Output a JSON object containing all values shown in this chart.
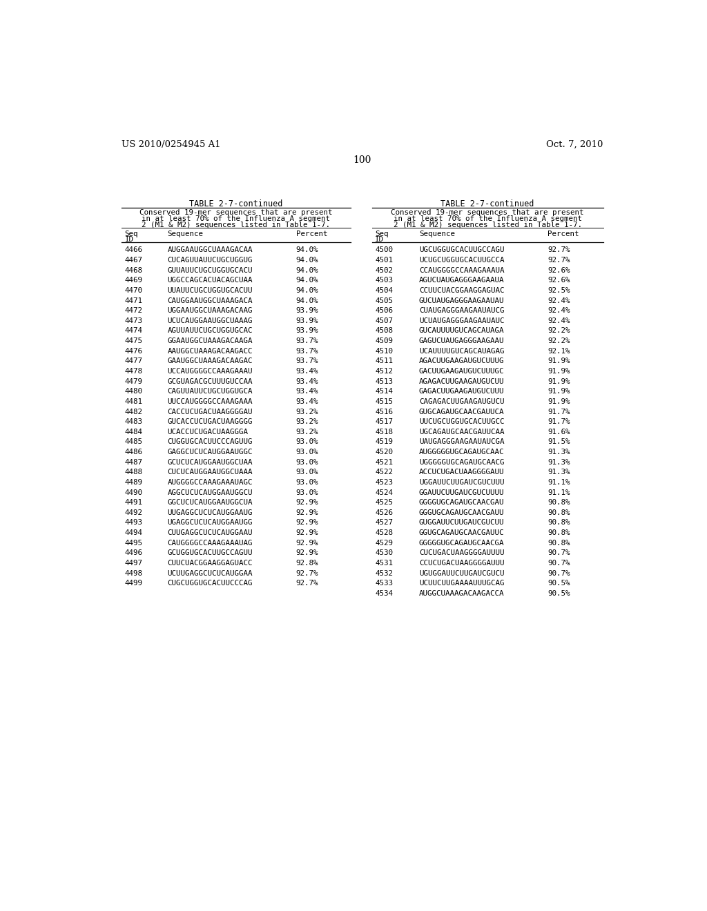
{
  "header_left": "US 2010/0254945 A1",
  "header_right": "Oct. 7, 2010",
  "page_number": "100",
  "table_title": "TABLE 2-7-continued",
  "table_subtitle_lines": [
    "Conserved 19-mer sequences that are present",
    "in at least 70% of the Influenza A segment",
    "2 (M1 & M2) sequences listed in Table 1-7."
  ],
  "left_data": [
    [
      "4466",
      "AUGGAAUGGCUAAAGACAA",
      "94.0%"
    ],
    [
      "4467",
      "CUCAGUUAUUCUGCUGGUG",
      "94.0%"
    ],
    [
      "4468",
      "GUUAUUCUGCUGGUGCACU",
      "94.0%"
    ],
    [
      "4469",
      "UGGCCAGCACUACAGCUAA",
      "94.0%"
    ],
    [
      "4470",
      "UUAUUCUGCUGGUGCACUU",
      "94.0%"
    ],
    [
      "4471",
      "CAUGGAAUGGCUAAAGACA",
      "94.0%"
    ],
    [
      "4472",
      "UGGAAUGGCUAAAGACAAG",
      "93.9%"
    ],
    [
      "4473",
      "UCUCAUGGAAUGGCUAAAG",
      "93.9%"
    ],
    [
      "4474",
      "AGUUAUUCUGCUGGUGCAC",
      "93.9%"
    ],
    [
      "4475",
      "GGAAUGGCUAAAGACAAGA",
      "93.7%"
    ],
    [
      "4476",
      "AAUGGCUAAAGACAAGACC",
      "93.7%"
    ],
    [
      "4477",
      "GAAUGGCUAAAGACAAGAC",
      "93.7%"
    ],
    [
      "4478",
      "UCCAUGGGGCCAAAGAAAU",
      "93.4%"
    ],
    [
      "4479",
      "GCGUAGACGCUUUGUCCAA",
      "93.4%"
    ],
    [
      "4480",
      "CAGUUAUUCUGCUGGUGCA",
      "93.4%"
    ],
    [
      "4481",
      "UUCCAUGGGGCCAAAGAAA",
      "93.4%"
    ],
    [
      "4482",
      "CACCUCUGACUAAGGGGAU",
      "93.2%"
    ],
    [
      "4483",
      "GUCACCUCUGACUAAGGGG",
      "93.2%"
    ],
    [
      "4484",
      "UCACCUCUGACUAAGGGA",
      "93.2%"
    ],
    [
      "4485",
      "CUGGUGCACUUCCCAGUUG",
      "93.0%"
    ],
    [
      "4486",
      "GAGGCUCUCAUGGAAUGGC",
      "93.0%"
    ],
    [
      "4487",
      "GCUCUCAUGGAAUGGCUAA",
      "93.0%"
    ],
    [
      "4488",
      "CUCUCAUGGAAUGGCUAAA",
      "93.0%"
    ],
    [
      "4489",
      "AUGGGGCCAAAGAAAUAGC",
      "93.0%"
    ],
    [
      "4490",
      "AGGCUCUCAUGGAAUGGCU",
      "93.0%"
    ],
    [
      "4491",
      "GGCUCUCAUGGAAUGGCUA",
      "92.9%"
    ],
    [
      "4492",
      "UUGAGGCUCUCAUGGAAUG",
      "92.9%"
    ],
    [
      "4493",
      "UGAGGCUCUCAUGGAAUGG",
      "92.9%"
    ],
    [
      "4494",
      "CUUGAGGCUCUCAUGGAAU",
      "92.9%"
    ],
    [
      "4495",
      "CAUGGGGCCAAAGAAAUAG",
      "92.9%"
    ],
    [
      "4496",
      "GCUGGUGCACUUGCCAGUU",
      "92.9%"
    ],
    [
      "4497",
      "CUUCUACGGAAGGAGUACC",
      "92.8%"
    ],
    [
      "4498",
      "UCUUGAGGCUCUCAUGGAA",
      "92.7%"
    ],
    [
      "4499",
      "CUGCUGGUGCACUUCCCAG",
      "92.7%"
    ]
  ],
  "right_data": [
    [
      "4500",
      "UGCUGGUGCACUUGCCAGU",
      "92.7%"
    ],
    [
      "4501",
      "UCUGCUGGUGCACUUGCCA",
      "92.7%"
    ],
    [
      "4502",
      "CCAUGGGGCCAAAGAAAUA",
      "92.6%"
    ],
    [
      "4503",
      "AGUCUAUGAGGGAAGAAUA",
      "92.6%"
    ],
    [
      "4504",
      "CCUUCUACGGAAGGAGUAC",
      "92.5%"
    ],
    [
      "4505",
      "GUCUAUGAGGGAAGAAUAU",
      "92.4%"
    ],
    [
      "4506",
      "CUAUGAGGGAAGAAUAUCG",
      "92.4%"
    ],
    [
      "4507",
      "UCUAUGAGGGAAGAAUAUC",
      "92.4%"
    ],
    [
      "4508",
      "GUCAUUUUGUCAGCAUAGA",
      "92.2%"
    ],
    [
      "4509",
      "GAGUCUAUGAGGGAAGAAU",
      "92.2%"
    ],
    [
      "4510",
      "UCAUUUUGUCAGCAUAGAG",
      "92.1%"
    ],
    [
      "4511",
      "AGACUUGAAGAUGUCUUUG",
      "91.9%"
    ],
    [
      "4512",
      "GACUUGAAGAUGUCUUUGC",
      "91.9%"
    ],
    [
      "4513",
      "AGAGACUUGAAGAUGUCUU",
      "91.9%"
    ],
    [
      "4514",
      "GAGACUUGAAGAUGUCUUU",
      "91.9%"
    ],
    [
      "4515",
      "CAGAGACUUGAAGAUGUCU",
      "91.9%"
    ],
    [
      "4516",
      "GUGCAGAUGCAACGAUUCA",
      "91.7%"
    ],
    [
      "4517",
      "UUCUGCUGGUGCACUUGCC",
      "91.7%"
    ],
    [
      "4518",
      "UGCAGAUGCAACGAUUCAA",
      "91.6%"
    ],
    [
      "4519",
      "UAUGAGGGAAGAAUAUCGA",
      "91.5%"
    ],
    [
      "4520",
      "AUGGGGGUGCAGAUGCAAC",
      "91.3%"
    ],
    [
      "4521",
      "UGGGGGUGCAGAUGCAACG",
      "91.3%"
    ],
    [
      "4522",
      "ACCUCUGACUAAGGGGAUU",
      "91.3%"
    ],
    [
      "4523",
      "UGGAUUCUUGAUCGUCUUU",
      "91.1%"
    ],
    [
      "4524",
      "GGAUUCUUGAUCGUCUUUU",
      "91.1%"
    ],
    [
      "4525",
      "GGGGUGCAGAUGCAACGAU",
      "90.8%"
    ],
    [
      "4526",
      "GGGUGCAGAUGCAACGAUU",
      "90.8%"
    ],
    [
      "4527",
      "GUGGAUUCUUGAUCGUCUU",
      "90.8%"
    ],
    [
      "4528",
      "GGUGCAGAUGCAACGAUUC",
      "90.8%"
    ],
    [
      "4529",
      "GGGGGUGCAGAUGCAACGA",
      "90.8%"
    ],
    [
      "4530",
      "CUCUGACUAAGGGGAUUUU",
      "90.7%"
    ],
    [
      "4531",
      "CCUCUGACUAAGGGGAUUU",
      "90.7%"
    ],
    [
      "4532",
      "UGUGGAUUCUUGAUCGUCU",
      "90.7%"
    ],
    [
      "4533",
      "UCUUCUUGAAAAUUUGCAG",
      "90.5%"
    ],
    [
      "4534",
      "AUGGCUAAAGACAAGACCA",
      "90.5%"
    ]
  ],
  "background_color": "#ffffff",
  "text_color": "#000000"
}
